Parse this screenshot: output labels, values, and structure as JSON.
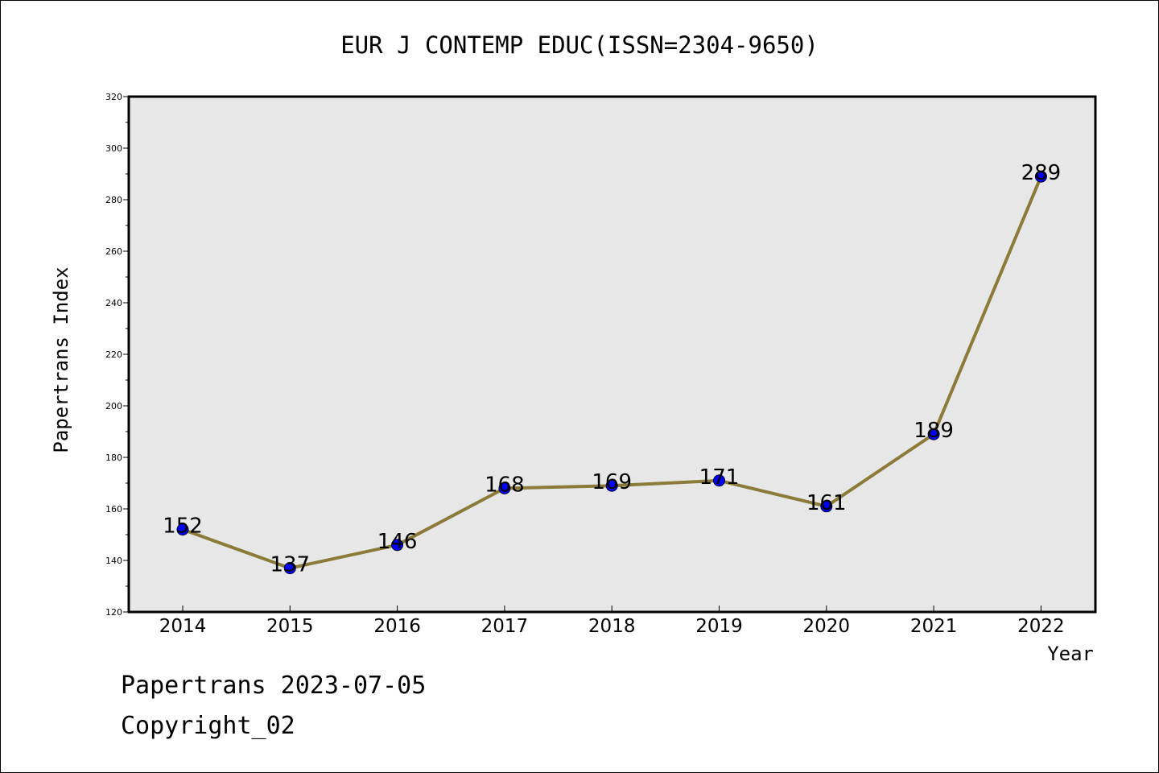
{
  "chart_data": {
    "type": "line",
    "title": "EUR J CONTEMP EDUC(ISSN=2304-9650)",
    "xlabel": "Year",
    "ylabel": "Papertrans Index",
    "categories": [
      "2014",
      "2015",
      "2016",
      "2017",
      "2018",
      "2019",
      "2020",
      "2021",
      "2022"
    ],
    "values": [
      152,
      137,
      146,
      168,
      169,
      171,
      161,
      189,
      289
    ],
    "data_labels": [
      "152",
      "137",
      "146",
      "168",
      "169",
      "171",
      "161",
      "189",
      "289"
    ],
    "ylim": [
      120,
      320
    ],
    "yticks": [
      "120",
      "140",
      "160",
      "180",
      "200",
      "220",
      "240",
      "260",
      "280",
      "300",
      "320"
    ],
    "colors": {
      "line": "#8b7a38",
      "marker": "#0000ff",
      "plot_background": "#e7e7e7"
    },
    "grid": false
  },
  "footer": {
    "line1": "Papertrans 2023-07-05",
    "line2": "Copyright_02"
  }
}
